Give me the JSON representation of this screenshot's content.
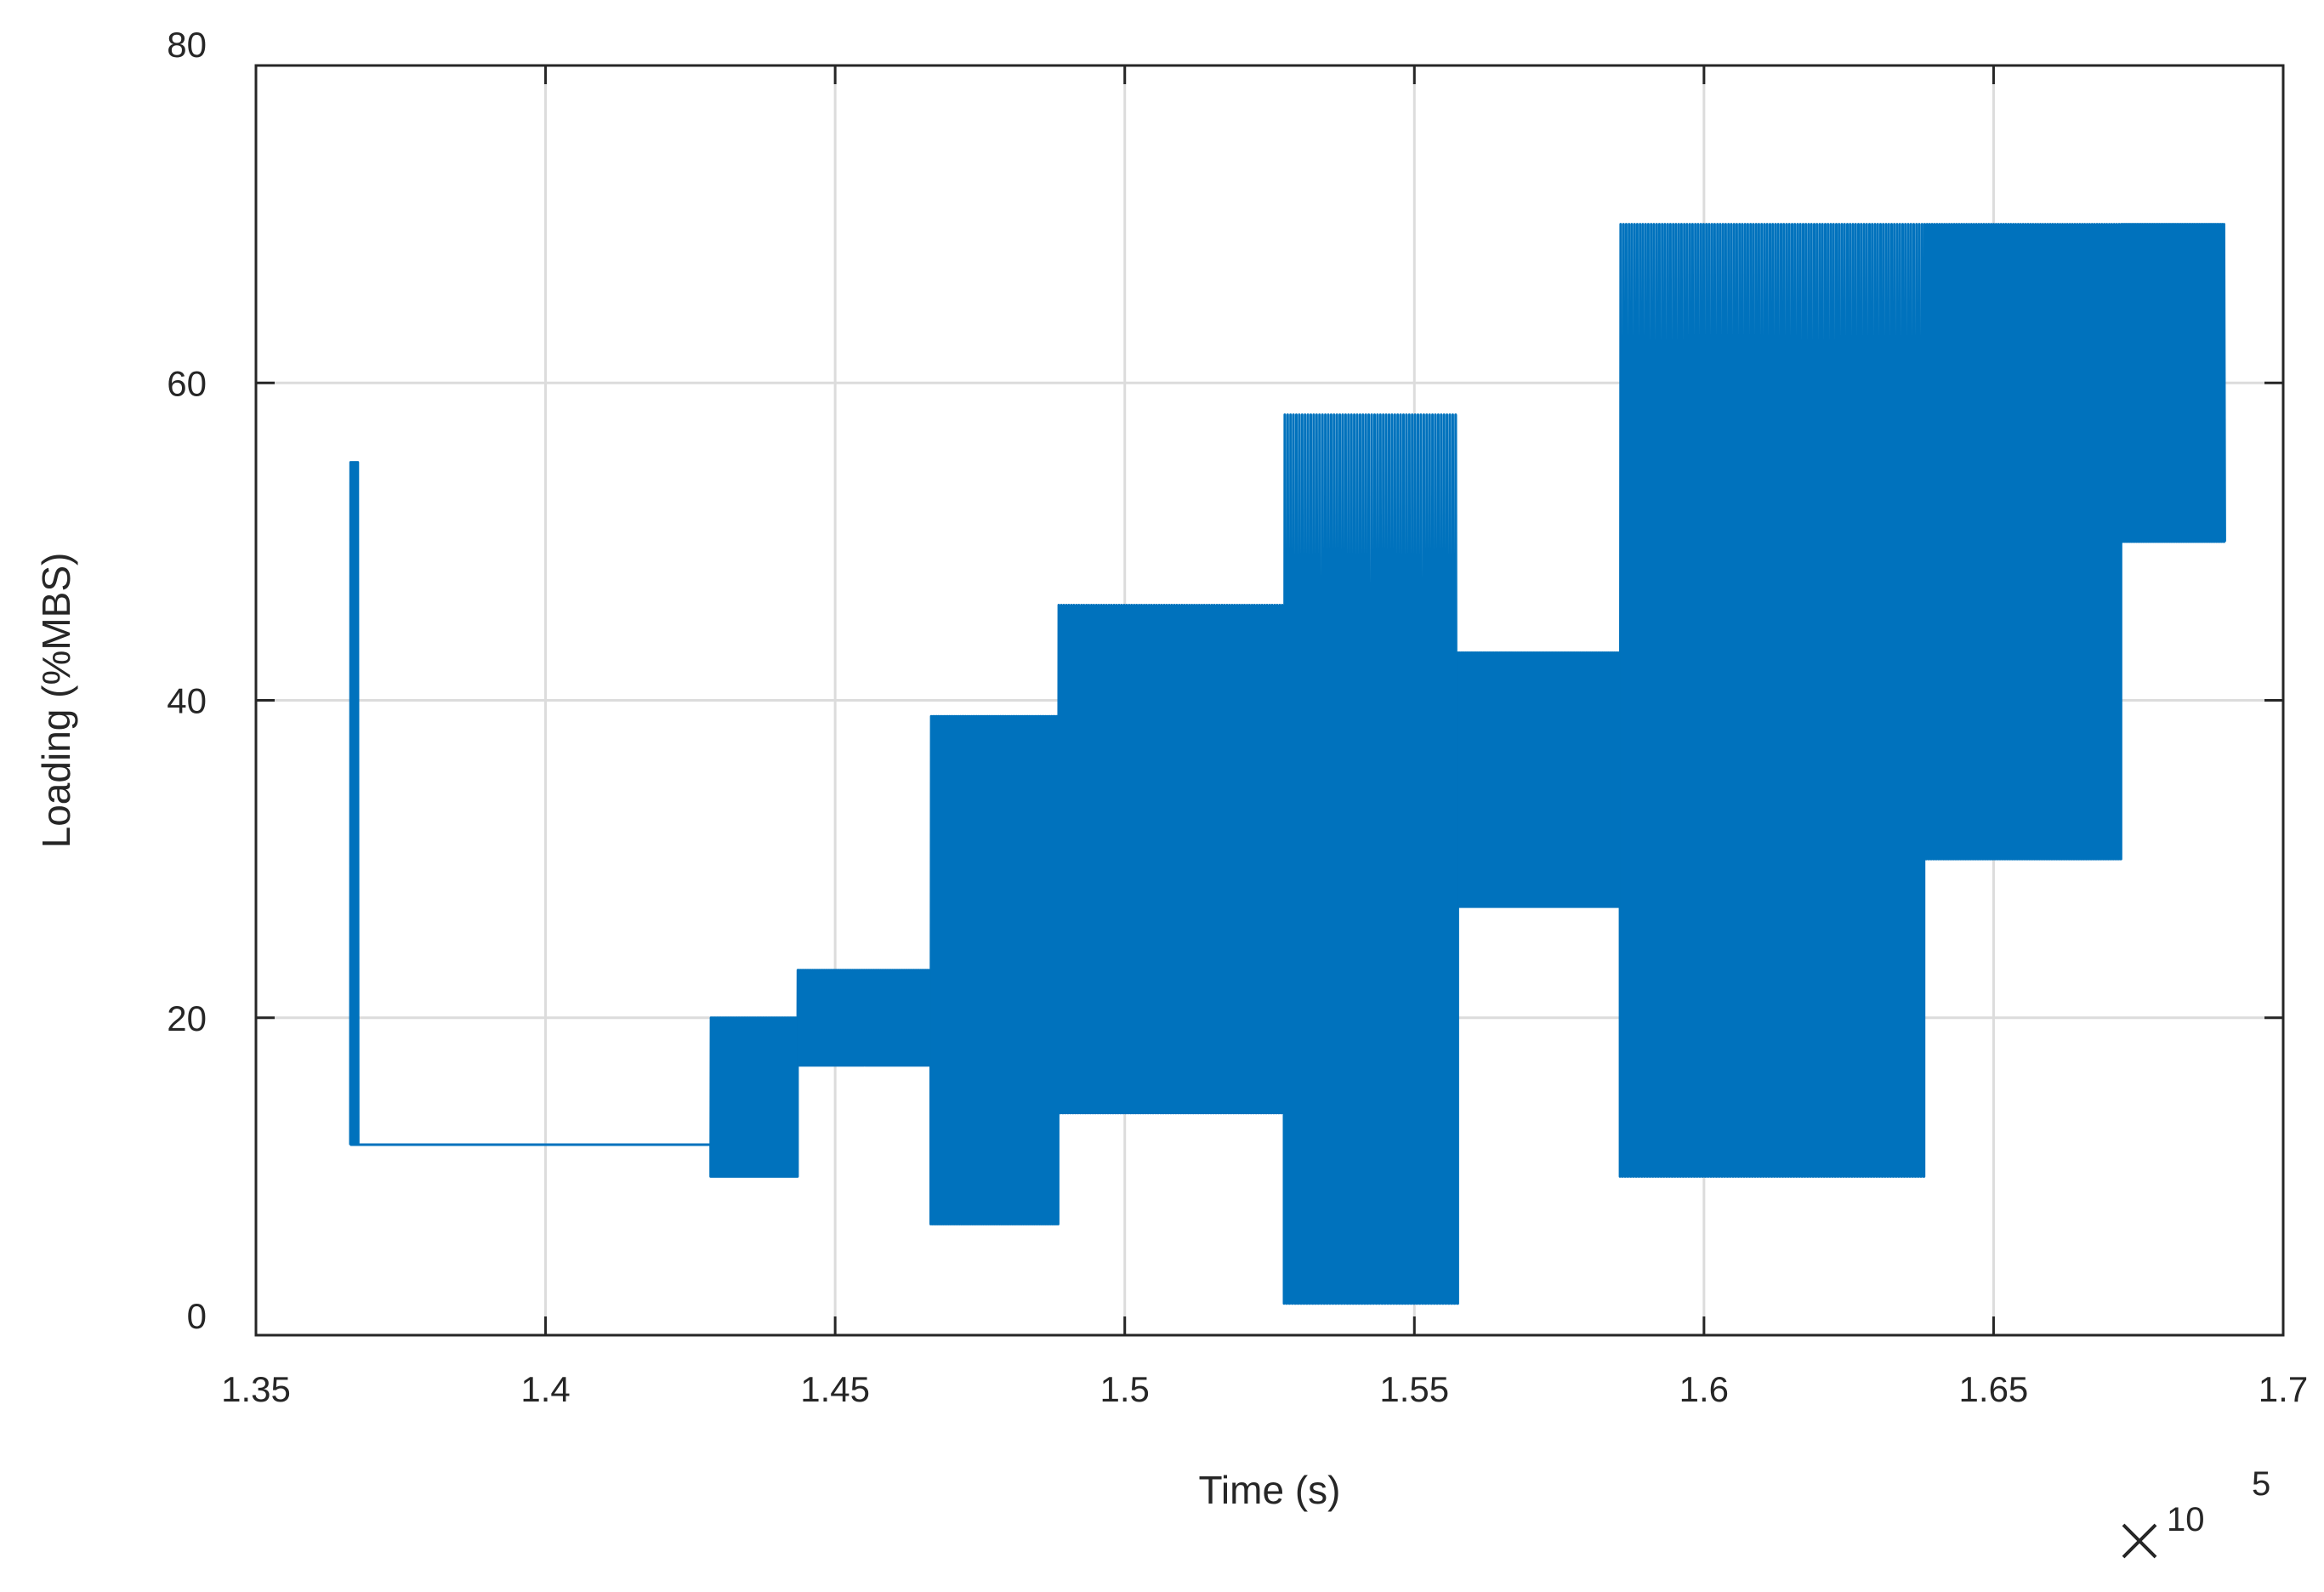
{
  "chart_data": {
    "type": "line",
    "title": "",
    "xlabel": "Time (s)",
    "ylabel": "Loading (%MBS)",
    "x_exponent_label": {
      "base": "10",
      "exponent": "5"
    },
    "xlim": [
      1.35,
      1.7
    ],
    "ylim": [
      0,
      80
    ],
    "xticks": [
      1.35,
      1.4,
      1.45,
      1.5,
      1.55,
      1.6,
      1.65,
      1.7
    ],
    "xtick_labels": [
      "1.35",
      "1.4",
      "1.45",
      "1.5",
      "1.55",
      "1.6",
      "1.65",
      "1.7"
    ],
    "yticks": [
      0,
      20,
      40,
      60,
      80
    ],
    "ytick_labels": [
      "0",
      "20",
      "40",
      "60",
      "80"
    ],
    "grid": true,
    "legend": "none",
    "series_color": "#0072BD",
    "series": [
      {
        "segments": [
          {
            "type": "oscillation",
            "x_start": 1.3663,
            "x_end": 1.3677,
            "y_min": 12,
            "y_max": 55,
            "cycles": 10
          },
          {
            "type": "constant",
            "x_start": 1.3677,
            "x_end": 1.4285,
            "y": 12
          },
          {
            "type": "oscillation",
            "x_start": 1.4285,
            "x_end": 1.4435,
            "y_min": 10,
            "y_max": 20,
            "cycles": 70
          },
          {
            "type": "oscillation",
            "x_start": 1.4435,
            "x_end": 1.4665,
            "y_min": 17,
            "y_max": 23,
            "cycles": 100
          },
          {
            "type": "oscillation",
            "x_start": 1.4665,
            "x_end": 1.4885,
            "y_min": 7,
            "y_max": 39,
            "cycles": 70
          },
          {
            "type": "oscillation",
            "x_start": 1.4885,
            "x_end": 1.5275,
            "y_min": 14,
            "y_max": 46,
            "cycles": 90
          },
          {
            "type": "oscillation",
            "x_start": 1.5275,
            "x_end": 1.5575,
            "y_min": 2,
            "y_max": 58,
            "cycles": 60
          },
          {
            "type": "oscillation",
            "x_start": 1.5575,
            "x_end": 1.5855,
            "y_min": 27,
            "y_max": 43,
            "cycles": 110
          },
          {
            "type": "oscillation",
            "x_start": 1.5855,
            "x_end": 1.638,
            "y_min": 10,
            "y_max": 70,
            "cycles": 110
          },
          {
            "type": "oscillation",
            "x_start": 1.638,
            "x_end": 1.672,
            "y_min": 30,
            "y_max": 70,
            "cycles": 80
          },
          {
            "type": "oscillation",
            "x_start": 1.672,
            "x_end": 1.69,
            "y_min": 50,
            "y_max": 70,
            "cycles": 60
          }
        ]
      }
    ]
  }
}
